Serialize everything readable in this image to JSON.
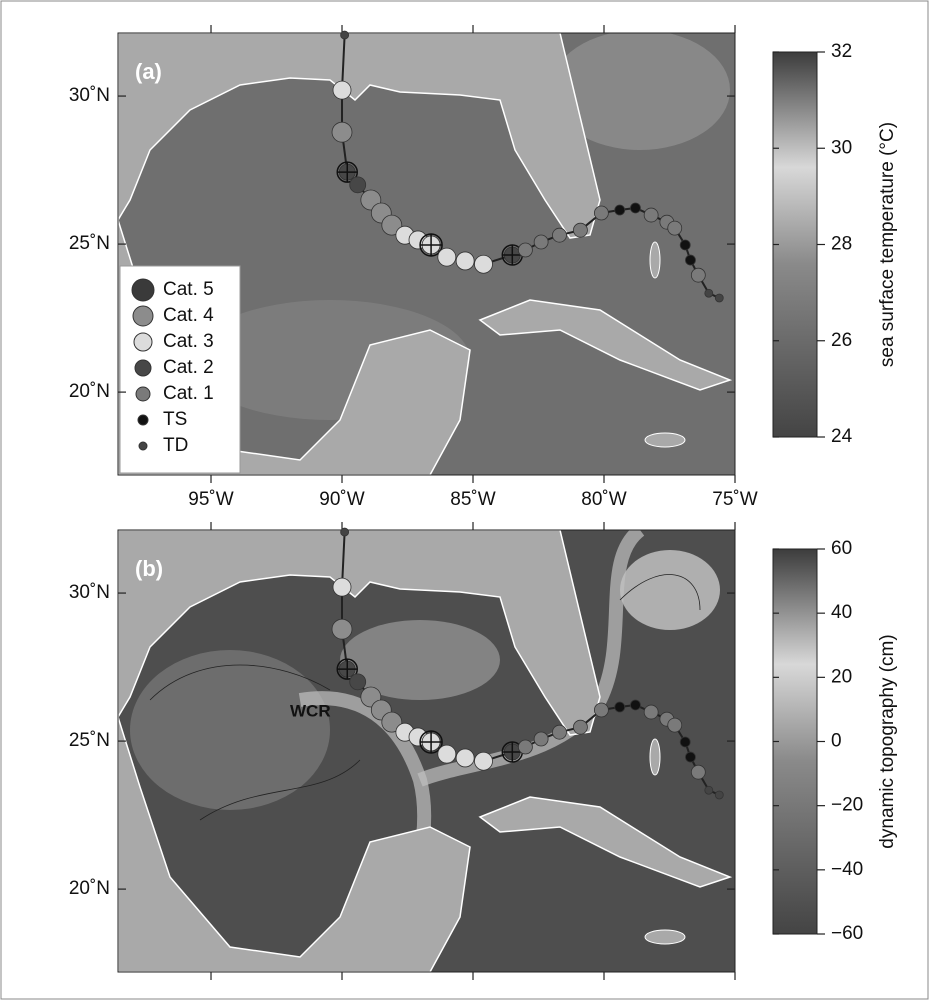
{
  "map": {
    "xlim": [
      -98.55,
      -75
    ],
    "ylim": [
      17.2,
      32.13
    ],
    "xticks": [
      {
        "value": -95,
        "label": "95˚W"
      },
      {
        "value": -90,
        "label": "90˚W"
      },
      {
        "value": -85,
        "label": "85˚W"
      },
      {
        "value": -80,
        "label": "80˚W"
      },
      {
        "value": -75,
        "label": "75˚W"
      }
    ],
    "yticks": [
      {
        "value": 30,
        "label": "30˚N"
      },
      {
        "value": 25,
        "label": "25˚N"
      },
      {
        "value": 20,
        "label": "20˚N"
      }
    ]
  },
  "panels": [
    {
      "label": "(a)",
      "colorbar": {
        "label": "sea surface temperature (°C)",
        "lim": [
          24,
          32
        ],
        "ticks": [
          32,
          30,
          28,
          26,
          24
        ]
      }
    },
    {
      "label": "(b)",
      "annotation": "WCR",
      "colorbar": {
        "label": "dynamic topography (cm)",
        "lim": [
          -60,
          60
        ],
        "ticks": [
          60,
          40,
          20,
          0,
          {
            "value": -20,
            "label": "−20"
          },
          {
            "value": -40,
            "label": "−40"
          },
          {
            "value": -60,
            "label": "−60"
          }
        ]
      }
    }
  ],
  "legend": [
    {
      "label": "Cat. 5",
      "color": "#3a3a3a",
      "size": 11
    },
    {
      "label": "Cat. 4",
      "color": "#8c8c8c",
      "size": 10
    },
    {
      "label": "Cat. 3",
      "color": "#dcdcdc",
      "size": 9
    },
    {
      "label": "Cat. 2",
      "color": "#474747",
      "size": 8
    },
    {
      "label": "Cat. 1",
      "color": "#7a7a7a",
      "size": 7
    },
    {
      "label": "TS",
      "color": "#111111",
      "size": 5
    },
    {
      "label": "TD",
      "color": "#444444",
      "size": 4
    }
  ],
  "track": [
    {
      "lon": -89.9,
      "lat": 32.06,
      "category": 6
    },
    {
      "lon": -90.0,
      "lat": 30.2,
      "category": 2
    },
    {
      "lon": -90.0,
      "lat": 28.78,
      "category": 1
    },
    {
      "lon": -89.8,
      "lat": 27.43,
      "category": 3,
      "cross": true
    },
    {
      "lon": -89.4,
      "lat": 27.0,
      "category": 3
    },
    {
      "lon": -88.9,
      "lat": 26.49,
      "category": 1
    },
    {
      "lon": -88.5,
      "lat": 26.05,
      "category": 1
    },
    {
      "lon": -88.1,
      "lat": 25.64,
      "category": 1
    },
    {
      "lon": -87.6,
      "lat": 25.3,
      "category": 2
    },
    {
      "lon": -87.1,
      "lat": 25.14,
      "category": 2
    },
    {
      "lon": -86.6,
      "lat": 24.97,
      "category": 2,
      "cross": true
    },
    {
      "lon": -86.0,
      "lat": 24.56,
      "category": 2
    },
    {
      "lon": -85.3,
      "lat": 24.43,
      "category": 2
    },
    {
      "lon": -84.6,
      "lat": 24.32,
      "category": 2
    },
    {
      "lon": -83.5,
      "lat": 24.63,
      "category": 3,
      "cross": true
    },
    {
      "lon": -83.0,
      "lat": 24.8,
      "category": 4
    },
    {
      "lon": -82.4,
      "lat": 25.07,
      "category": 4
    },
    {
      "lon": -81.7,
      "lat": 25.3,
      "category": 4
    },
    {
      "lon": -80.9,
      "lat": 25.47,
      "category": 4
    },
    {
      "lon": -80.1,
      "lat": 26.05,
      "category": 4
    },
    {
      "lon": -79.4,
      "lat": 26.15,
      "category": 5
    },
    {
      "lon": -78.8,
      "lat": 26.22,
      "category": 5
    },
    {
      "lon": -78.2,
      "lat": 25.98,
      "category": 4
    },
    {
      "lon": -77.6,
      "lat": 25.74,
      "category": 4
    },
    {
      "lon": -77.3,
      "lat": 25.54,
      "category": 4
    },
    {
      "lon": -76.9,
      "lat": 24.97,
      "category": 5
    },
    {
      "lon": -76.7,
      "lat": 24.46,
      "category": 5
    },
    {
      "lon": -76.4,
      "lat": 23.95,
      "category": 4
    },
    {
      "lon": -76.0,
      "lat": 23.34,
      "category": 6
    },
    {
      "lon": -75.6,
      "lat": 23.18,
      "category": 6
    }
  ]
}
